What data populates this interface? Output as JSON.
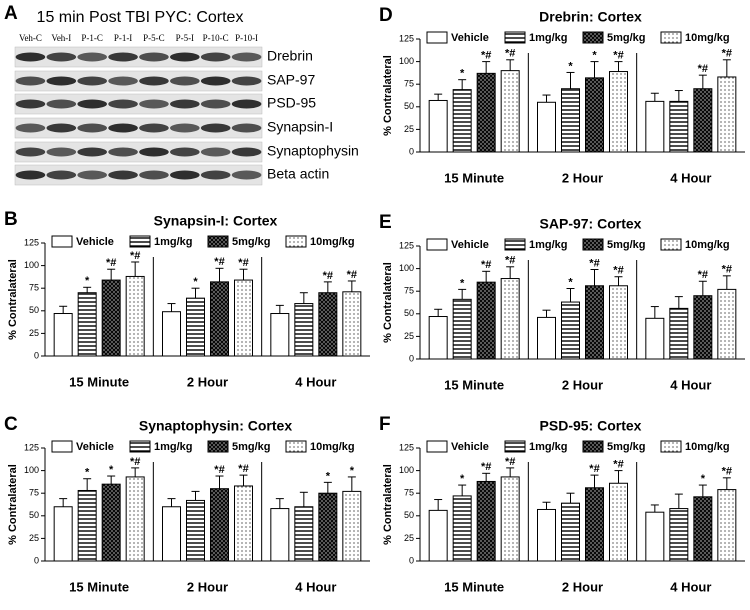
{
  "blot": {
    "panel": "A",
    "title": "15 min Post TBI PYC: Cortex",
    "lanes": [
      "Veh-C",
      "Veh-I",
      "P-1-C",
      "P-1-I",
      "P-5-C",
      "P-5-I",
      "P-10-C",
      "P-10-I"
    ],
    "proteins": [
      "Drebrin",
      "SAP-97",
      "PSD-95",
      "Synapsin-I",
      "Synaptophysin",
      "Beta actin"
    ]
  },
  "chart_data": [
    {
      "type": "bar",
      "panel": "B",
      "title": "Synapsin-I: Cortex",
      "ylabel": "% Contralateral",
      "categories": [
        "15 Minute",
        "2 Hour",
        "4 Hour"
      ],
      "ylim": [
        0,
        125
      ],
      "yticks": [
        0,
        25,
        50,
        75,
        100,
        125
      ],
      "legend": "top",
      "series": [
        {
          "name": "Vehicle",
          "color": "#000000",
          "pattern": "none",
          "values": [
            47,
            49,
            47
          ],
          "errors": [
            8,
            9,
            9
          ],
          "annotations": [
            null,
            null,
            null
          ]
        },
        {
          "name": "1mg/kg",
          "color": "#000000",
          "pattern": "horizontal",
          "values": [
            70,
            64,
            58
          ],
          "errors": [
            6,
            11,
            12
          ],
          "annotations": [
            "*",
            "*",
            null
          ]
        },
        {
          "name": "5mg/kg",
          "color": "#000000",
          "pattern": "crosshatch",
          "values": [
            84,
            82,
            70
          ],
          "errors": [
            12,
            15,
            12
          ],
          "annotations": [
            "*#",
            "*#",
            "*#"
          ]
        },
        {
          "name": "10mg/kg",
          "color": "#000000",
          "pattern": "dots",
          "values": [
            88,
            84,
            71
          ],
          "errors": [
            16,
            12,
            12
          ],
          "annotations": [
            "*#",
            "*#",
            "*#"
          ]
        }
      ]
    },
    {
      "type": "bar",
      "panel": "C",
      "title": "Synaptophysin: Cortex",
      "ylabel": "% Contralateral",
      "categories": [
        "15 Minute",
        "2 Hour",
        "4 Hour"
      ],
      "ylim": [
        0,
        125
      ],
      "yticks": [
        0,
        25,
        50,
        75,
        100,
        125
      ],
      "legend": "top",
      "series": [
        {
          "name": "Vehicle",
          "color": "#000000",
          "pattern": "none",
          "values": [
            60,
            60,
            58
          ],
          "errors": [
            9,
            9,
            11
          ],
          "annotations": [
            null,
            null,
            null
          ]
        },
        {
          "name": "1mg/kg",
          "color": "#000000",
          "pattern": "horizontal",
          "values": [
            78,
            67,
            60
          ],
          "errors": [
            13,
            10,
            16
          ],
          "annotations": [
            "*",
            null,
            null
          ]
        },
        {
          "name": "5mg/kg",
          "color": "#000000",
          "pattern": "crosshatch",
          "values": [
            85,
            80,
            75
          ],
          "errors": [
            9,
            14,
            12
          ],
          "annotations": [
            "*",
            "*#",
            "*"
          ]
        },
        {
          "name": "10mg/kg",
          "color": "#000000",
          "pattern": "dots",
          "values": [
            93,
            83,
            77
          ],
          "errors": [
            10,
            12,
            16
          ],
          "annotations": [
            "*#",
            "*#",
            "*"
          ]
        }
      ]
    },
    {
      "type": "bar",
      "panel": "D",
      "title": "Drebrin: Cortex",
      "ylabel": "% Contralateral",
      "categories": [
        "15 Minute",
        "2 Hour",
        "4 Hour"
      ],
      "ylim": [
        0,
        125
      ],
      "yticks": [
        0,
        25,
        50,
        75,
        100,
        125
      ],
      "legend": "top",
      "series": [
        {
          "name": "Vehicle",
          "color": "#000000",
          "pattern": "none",
          "values": [
            57,
            55,
            56
          ],
          "errors": [
            7,
            8,
            9
          ],
          "annotations": [
            null,
            null,
            null
          ]
        },
        {
          "name": "1mg/kg",
          "color": "#000000",
          "pattern": "horizontal",
          "values": [
            69,
            70,
            56
          ],
          "errors": [
            11,
            18,
            12
          ],
          "annotations": [
            "*",
            "*",
            null
          ]
        },
        {
          "name": "5mg/kg",
          "color": "#000000",
          "pattern": "crosshatch",
          "values": [
            87,
            82,
            70
          ],
          "errors": [
            13,
            18,
            15
          ],
          "annotations": [
            "*#",
            "*",
            "*#"
          ]
        },
        {
          "name": "10mg/kg",
          "color": "#000000",
          "pattern": "dots",
          "values": [
            90,
            89,
            83
          ],
          "errors": [
            12,
            11,
            19
          ],
          "annotations": [
            "*#",
            "*#",
            "*#"
          ]
        }
      ]
    },
    {
      "type": "bar",
      "panel": "E",
      "title": "SAP-97: Cortex",
      "ylabel": "% Contralateral",
      "categories": [
        "15 Minute",
        "2 Hour",
        "4 Hour"
      ],
      "ylim": [
        0,
        125
      ],
      "yticks": [
        0,
        25,
        50,
        75,
        100,
        125
      ],
      "legend": "top",
      "series": [
        {
          "name": "Vehicle",
          "color": "#000000",
          "pattern": "none",
          "values": [
            47,
            46,
            45
          ],
          "errors": [
            8,
            8,
            13
          ],
          "annotations": [
            null,
            null,
            null
          ]
        },
        {
          "name": "1mg/kg",
          "color": "#000000",
          "pattern": "horizontal",
          "values": [
            66,
            63,
            56
          ],
          "errors": [
            11,
            15,
            13
          ],
          "annotations": [
            "*",
            "*",
            null
          ]
        },
        {
          "name": "5mg/kg",
          "color": "#000000",
          "pattern": "crosshatch",
          "values": [
            85,
            81,
            70
          ],
          "errors": [
            12,
            18,
            16
          ],
          "annotations": [
            "*#",
            "*#",
            "*#"
          ]
        },
        {
          "name": "10mg/kg",
          "color": "#000000",
          "pattern": "dots",
          "values": [
            89,
            81,
            77
          ],
          "errors": [
            13,
            10,
            15
          ],
          "annotations": [
            "*#",
            "*#",
            "*#"
          ]
        }
      ]
    },
    {
      "type": "bar",
      "panel": "F",
      "title": "PSD-95: Cortex",
      "ylabel": "% Contralateral",
      "categories": [
        "15 Minute",
        "2 Hour",
        "4 Hour"
      ],
      "ylim": [
        0,
        125
      ],
      "yticks": [
        0,
        25,
        50,
        75,
        100,
        125
      ],
      "legend": "top",
      "series": [
        {
          "name": "Vehicle",
          "color": "#000000",
          "pattern": "none",
          "values": [
            56,
            57,
            54
          ],
          "errors": [
            12,
            8,
            8
          ],
          "annotations": [
            null,
            null,
            null
          ]
        },
        {
          "name": "1mg/kg",
          "color": "#000000",
          "pattern": "horizontal",
          "values": [
            72,
            64,
            58
          ],
          "errors": [
            12,
            11,
            16
          ],
          "annotations": [
            "*",
            null,
            null
          ]
        },
        {
          "name": "5mg/kg",
          "color": "#000000",
          "pattern": "crosshatch",
          "values": [
            88,
            81,
            71
          ],
          "errors": [
            9,
            14,
            13
          ],
          "annotations": [
            "*#",
            "*#",
            "*"
          ]
        },
        {
          "name": "10mg/kg",
          "color": "#000000",
          "pattern": "dots",
          "values": [
            93,
            86,
            79
          ],
          "errors": [
            10,
            14,
            13
          ],
          "annotations": [
            "*#",
            "*#",
            "*#"
          ]
        }
      ]
    }
  ]
}
